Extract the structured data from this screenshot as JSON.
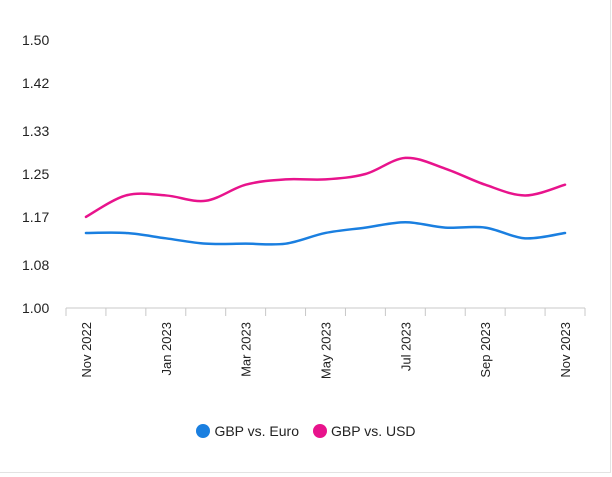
{
  "chart_data": {
    "type": "line",
    "title": "",
    "xlabel": "",
    "ylabel": "",
    "x": [
      "Nov 2022",
      "Dec 2022",
      "Jan 2023",
      "Feb 2023",
      "Mar 2023",
      "Apr 2023",
      "May 2023",
      "Jun 2023",
      "Jul 2023",
      "Aug 2023",
      "Sep 2023",
      "Oct 2023",
      "Nov 2023"
    ],
    "x_tick_labels": [
      "Nov 2022",
      "Jan 2023",
      "Mar 2023",
      "May 2023",
      "Jul 2023",
      "Sep 2023",
      "Nov 2023"
    ],
    "y_tick_labels": [
      "1.00",
      "1.08",
      "1.17",
      "1.25",
      "1.33",
      "1.42",
      "1.50"
    ],
    "ylim": [
      1.0,
      1.5
    ],
    "grid": false,
    "legend_position": "bottom",
    "series": [
      {
        "name": "GBP vs. Euro",
        "color": "#1a7fe0",
        "values": [
          1.14,
          1.14,
          1.13,
          1.12,
          1.12,
          1.12,
          1.14,
          1.15,
          1.16,
          1.15,
          1.15,
          1.13,
          1.14
        ]
      },
      {
        "name": "GBP vs. USD",
        "color": "#e8138c",
        "values": [
          1.17,
          1.21,
          1.21,
          1.2,
          1.23,
          1.24,
          1.24,
          1.25,
          1.28,
          1.26,
          1.23,
          1.21,
          1.23
        ]
      }
    ]
  }
}
